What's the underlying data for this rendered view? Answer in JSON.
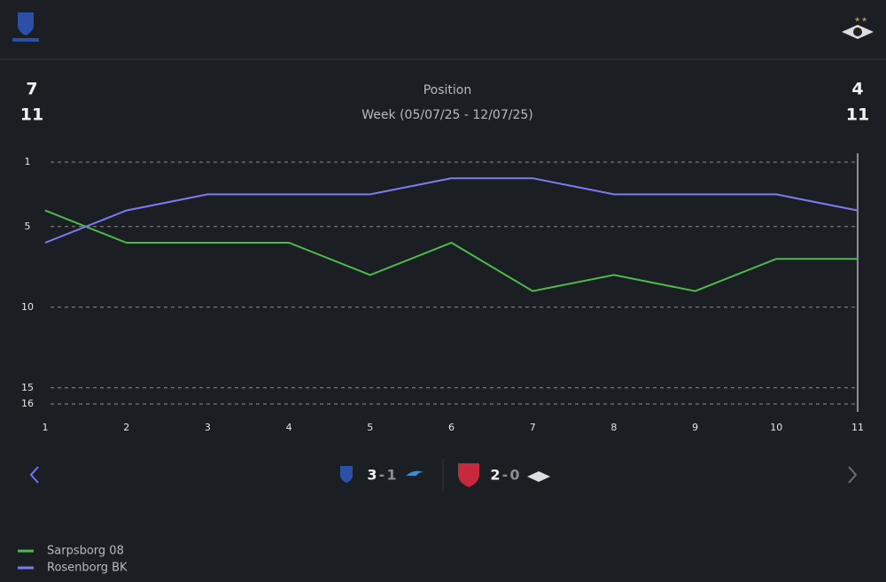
{
  "header": {
    "home_position": "7",
    "home_total": "11",
    "away_position": "4",
    "away_total": "11",
    "title": "Position",
    "subtitle": "Week (05/07/25 - 12/07/25)"
  },
  "chart_data": {
    "type": "line",
    "x": [
      1,
      2,
      3,
      4,
      5,
      6,
      7,
      8,
      9,
      10,
      11
    ],
    "xlim": [
      1,
      11
    ],
    "xticks": [
      1,
      2,
      3,
      4,
      5,
      6,
      7,
      8,
      9,
      10,
      11
    ],
    "ylim": [
      16,
      1
    ],
    "yticks": [
      1,
      5,
      10,
      15,
      16
    ],
    "grid": true,
    "series": [
      {
        "name": "Sarpsborg 08",
        "color": "#4cbb4c",
        "values": [
          4,
          6,
          6,
          6,
          8,
          6,
          9,
          8,
          9,
          7,
          7
        ]
      },
      {
        "name": "Rosenborg BK",
        "color": "#7b7cf2",
        "values": [
          6,
          4,
          3,
          3,
          3,
          2,
          2,
          3,
          3,
          3,
          4
        ]
      }
    ]
  },
  "matches": [
    {
      "home_score": "3",
      "separator": "-",
      "away_score": "1"
    },
    {
      "home_score": "2",
      "separator": "-",
      "away_score": "0"
    }
  ]
}
